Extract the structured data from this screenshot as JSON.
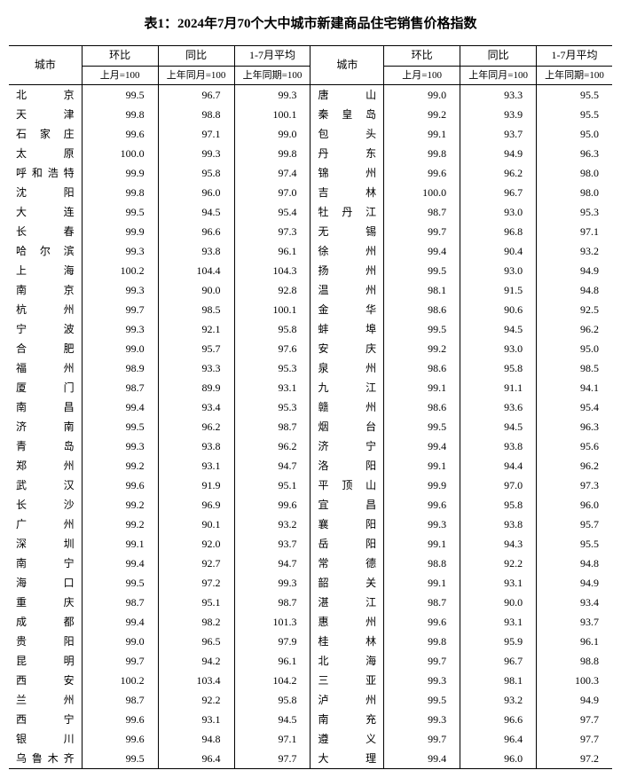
{
  "title": "表1：2024年7月70个大中城市新建商品住宅销售价格指数",
  "headers": {
    "city": "城市",
    "mom": "环比",
    "yoy": "同比",
    "avg": "1-7月平均",
    "mom_sub": "上月=100",
    "yoy_sub": "上年同月=100",
    "avg_sub": "上年同期=100"
  },
  "left_rows": [
    {
      "city": "北京",
      "mom": "99.5",
      "yoy": "96.7",
      "avg": "99.3"
    },
    {
      "city": "天津",
      "mom": "99.8",
      "yoy": "98.8",
      "avg": "100.1"
    },
    {
      "city": "石家庄",
      "mom": "99.6",
      "yoy": "97.1",
      "avg": "99.0"
    },
    {
      "city": "太原",
      "mom": "100.0",
      "yoy": "99.3",
      "avg": "99.8"
    },
    {
      "city": "呼和浩特",
      "mom": "99.9",
      "yoy": "95.8",
      "avg": "97.4"
    },
    {
      "city": "沈阳",
      "mom": "99.8",
      "yoy": "96.0",
      "avg": "97.0"
    },
    {
      "city": "大连",
      "mom": "99.5",
      "yoy": "94.5",
      "avg": "95.4"
    },
    {
      "city": "长春",
      "mom": "99.9",
      "yoy": "96.6",
      "avg": "97.3"
    },
    {
      "city": "哈尔滨",
      "mom": "99.3",
      "yoy": "93.8",
      "avg": "96.1"
    },
    {
      "city": "上海",
      "mom": "100.2",
      "yoy": "104.4",
      "avg": "104.3"
    },
    {
      "city": "南京",
      "mom": "99.3",
      "yoy": "90.0",
      "avg": "92.8"
    },
    {
      "city": "杭州",
      "mom": "99.7",
      "yoy": "98.5",
      "avg": "100.1"
    },
    {
      "city": "宁波",
      "mom": "99.3",
      "yoy": "92.1",
      "avg": "95.8"
    },
    {
      "city": "合肥",
      "mom": "99.0",
      "yoy": "95.7",
      "avg": "97.6"
    },
    {
      "city": "福州",
      "mom": "98.9",
      "yoy": "93.3",
      "avg": "95.3"
    },
    {
      "city": "厦门",
      "mom": "98.7",
      "yoy": "89.9",
      "avg": "93.1"
    },
    {
      "city": "南昌",
      "mom": "99.4",
      "yoy": "93.4",
      "avg": "95.3"
    },
    {
      "city": "济南",
      "mom": "99.5",
      "yoy": "96.2",
      "avg": "98.7"
    },
    {
      "city": "青岛",
      "mom": "99.3",
      "yoy": "93.8",
      "avg": "96.2"
    },
    {
      "city": "郑州",
      "mom": "99.2",
      "yoy": "93.1",
      "avg": "94.7"
    },
    {
      "city": "武汉",
      "mom": "99.6",
      "yoy": "91.9",
      "avg": "95.1"
    },
    {
      "city": "长沙",
      "mom": "99.2",
      "yoy": "96.9",
      "avg": "99.6"
    },
    {
      "city": "广州",
      "mom": "99.2",
      "yoy": "90.1",
      "avg": "93.2"
    },
    {
      "city": "深圳",
      "mom": "99.1",
      "yoy": "92.0",
      "avg": "93.7"
    },
    {
      "city": "南宁",
      "mom": "99.4",
      "yoy": "92.7",
      "avg": "94.7"
    },
    {
      "city": "海口",
      "mom": "99.5",
      "yoy": "97.2",
      "avg": "99.3"
    },
    {
      "city": "重庆",
      "mom": "98.7",
      "yoy": "95.1",
      "avg": "98.7"
    },
    {
      "city": "成都",
      "mom": "99.4",
      "yoy": "98.2",
      "avg": "101.3"
    },
    {
      "city": "贵阳",
      "mom": "99.0",
      "yoy": "96.5",
      "avg": "97.9"
    },
    {
      "city": "昆明",
      "mom": "99.7",
      "yoy": "94.2",
      "avg": "96.1"
    },
    {
      "city": "西安",
      "mom": "100.2",
      "yoy": "103.4",
      "avg": "104.2"
    },
    {
      "city": "兰州",
      "mom": "98.7",
      "yoy": "92.2",
      "avg": "95.8"
    },
    {
      "city": "西宁",
      "mom": "99.6",
      "yoy": "93.1",
      "avg": "94.5"
    },
    {
      "city": "银川",
      "mom": "99.6",
      "yoy": "94.8",
      "avg": "97.1"
    },
    {
      "city": "乌鲁木齐",
      "mom": "99.5",
      "yoy": "96.4",
      "avg": "97.7"
    }
  ],
  "right_rows": [
    {
      "city": "唐山",
      "mom": "99.0",
      "yoy": "93.3",
      "avg": "95.5"
    },
    {
      "city": "秦皇岛",
      "mom": "99.2",
      "yoy": "93.9",
      "avg": "95.5"
    },
    {
      "city": "包头",
      "mom": "99.1",
      "yoy": "93.7",
      "avg": "95.0"
    },
    {
      "city": "丹东",
      "mom": "99.8",
      "yoy": "94.9",
      "avg": "96.3"
    },
    {
      "city": "锦州",
      "mom": "99.6",
      "yoy": "96.2",
      "avg": "98.0"
    },
    {
      "city": "吉林",
      "mom": "100.0",
      "yoy": "96.7",
      "avg": "98.0"
    },
    {
      "city": "牡丹江",
      "mom": "98.7",
      "yoy": "93.0",
      "avg": "95.3"
    },
    {
      "city": "无锡",
      "mom": "99.7",
      "yoy": "96.8",
      "avg": "97.1"
    },
    {
      "city": "徐州",
      "mom": "99.4",
      "yoy": "90.4",
      "avg": "93.2"
    },
    {
      "city": "扬州",
      "mom": "99.5",
      "yoy": "93.0",
      "avg": "94.9"
    },
    {
      "city": "温州",
      "mom": "98.1",
      "yoy": "91.5",
      "avg": "94.8"
    },
    {
      "city": "金华",
      "mom": "98.6",
      "yoy": "90.6",
      "avg": "92.5"
    },
    {
      "city": "蚌埠",
      "mom": "99.5",
      "yoy": "94.5",
      "avg": "96.2"
    },
    {
      "city": "安庆",
      "mom": "99.2",
      "yoy": "93.0",
      "avg": "95.0"
    },
    {
      "city": "泉州",
      "mom": "98.6",
      "yoy": "95.8",
      "avg": "98.5"
    },
    {
      "city": "九江",
      "mom": "99.1",
      "yoy": "91.1",
      "avg": "94.1"
    },
    {
      "city": "赣州",
      "mom": "98.6",
      "yoy": "93.6",
      "avg": "95.4"
    },
    {
      "city": "烟台",
      "mom": "99.5",
      "yoy": "94.5",
      "avg": "96.3"
    },
    {
      "city": "济宁",
      "mom": "99.4",
      "yoy": "93.8",
      "avg": "95.6"
    },
    {
      "city": "洛阳",
      "mom": "99.1",
      "yoy": "94.4",
      "avg": "96.2"
    },
    {
      "city": "平顶山",
      "mom": "99.9",
      "yoy": "97.0",
      "avg": "97.3"
    },
    {
      "city": "宜昌",
      "mom": "99.6",
      "yoy": "95.8",
      "avg": "96.0"
    },
    {
      "city": "襄阳",
      "mom": "99.3",
      "yoy": "93.8",
      "avg": "95.7"
    },
    {
      "city": "岳阳",
      "mom": "99.1",
      "yoy": "94.3",
      "avg": "95.5"
    },
    {
      "city": "常德",
      "mom": "98.8",
      "yoy": "92.2",
      "avg": "94.8"
    },
    {
      "city": "韶关",
      "mom": "99.1",
      "yoy": "93.1",
      "avg": "94.9"
    },
    {
      "city": "湛江",
      "mom": "98.7",
      "yoy": "90.0",
      "avg": "93.4"
    },
    {
      "city": "惠州",
      "mom": "99.6",
      "yoy": "93.1",
      "avg": "93.7"
    },
    {
      "city": "桂林",
      "mom": "99.8",
      "yoy": "95.9",
      "avg": "96.1"
    },
    {
      "city": "北海",
      "mom": "99.7",
      "yoy": "96.7",
      "avg": "98.8"
    },
    {
      "city": "三亚",
      "mom": "99.3",
      "yoy": "98.1",
      "avg": "100.3"
    },
    {
      "city": "泸州",
      "mom": "99.5",
      "yoy": "93.2",
      "avg": "94.9"
    },
    {
      "city": "南充",
      "mom": "99.3",
      "yoy": "96.6",
      "avg": "97.7"
    },
    {
      "city": "遵义",
      "mom": "99.7",
      "yoy": "96.4",
      "avg": "97.7"
    },
    {
      "city": "大理",
      "mom": "99.4",
      "yoy": "96.0",
      "avg": "97.2"
    }
  ]
}
